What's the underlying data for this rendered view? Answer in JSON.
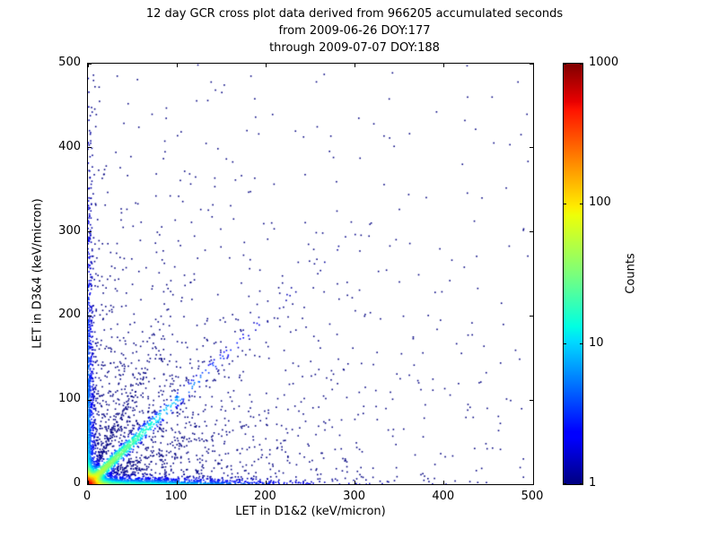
{
  "chart_data": {
    "type": "scatter",
    "title_lines": [
      "12 day GCR cross plot data derived from 966205 accumulated seconds",
      "from 2009-06-26 DOY:177",
      "through 2009-07-07 DOY:188"
    ],
    "xlabel": "LET in D1&2 (keV/micron)",
    "ylabel": "LET in D3&4 (keV/micron)",
    "xlim": [
      0,
      500
    ],
    "ylim": [
      0,
      500
    ],
    "x_ticks": [
      0,
      100,
      200,
      300,
      400,
      500
    ],
    "y_ticks": [
      0,
      100,
      200,
      300,
      400,
      500
    ],
    "grid": false,
    "legend": "none",
    "colorbar": {
      "label": "Counts",
      "scale": "log",
      "min": 1,
      "max": 1000,
      "tick_values": [
        1,
        10,
        100,
        1000
      ],
      "tick_labels": [
        "1",
        "10",
        "100",
        "1000"
      ],
      "colormap": "jet",
      "gradient_stops": [
        {
          "pos": 0.0,
          "color": "#000080"
        },
        {
          "pos": 0.11,
          "color": "#0000ff"
        },
        {
          "pos": 0.125,
          "color": "#0000ff"
        },
        {
          "pos": 0.34,
          "color": "#00dbff"
        },
        {
          "pos": 0.375,
          "color": "#00ffe2"
        },
        {
          "pos": 0.5,
          "color": "#7bff7b"
        },
        {
          "pos": 0.64,
          "color": "#eeff08"
        },
        {
          "pos": 0.66,
          "color": "#ffec00"
        },
        {
          "pos": 0.89,
          "color": "#ff1300"
        },
        {
          "pos": 0.91,
          "color": "#e80000"
        },
        {
          "pos": 1.0,
          "color": "#800000"
        }
      ]
    },
    "point_color_single_count": "#000080",
    "point_color_max_count": "#800000",
    "distribution": {
      "seed": 12345,
      "description": "Dense hot (red/orange, ~1000 counts) core at the origin; bright 1:1 diagonal correlation band fading from green/cyan to dark blue out to ~340 keV/micron; dense count band hugging the x-axis out to ~480; band hugging the y-axis up to ~500; minor rays fanning from the origin; sparse single-count dark-blue background points over the whole plane.",
      "components": [
        {
          "name": "sparse-background",
          "type": "biexp",
          "n": 900,
          "x_scale": 115,
          "y_scale": 115
        },
        {
          "name": "uniform-sprinkle",
          "type": "uniform",
          "n": 200
        },
        {
          "name": "mid-halo",
          "type": "biexp",
          "n": 500,
          "x_scale": 60,
          "y_scale": 60
        },
        {
          "name": "y-axis-band",
          "type": "biexp",
          "n": 750,
          "x_scale": 2.8,
          "y_scale": 130
        },
        {
          "name": "x-axis-band",
          "type": "biexp",
          "n": 1400,
          "x_scale": 65,
          "y_scale": 2.8
        },
        {
          "name": "ray-shallow",
          "type": "ray",
          "n": 220,
          "slope": 0.45,
          "d_scale": 30,
          "noise": 1.5,
          "noise_growth": 0.03
        },
        {
          "name": "ray-steep",
          "type": "ray",
          "n": 220,
          "slope": 2.2,
          "d_scale": 30,
          "noise": 1.5,
          "noise_growth": 0.03
        },
        {
          "name": "diagonal-band",
          "type": "diagonal",
          "n": 1300,
          "d_scale": 22,
          "d_scale_tail": 90,
          "tail_frac": 0.25,
          "noise": 1.2,
          "noise_growth": 0.04,
          "d_max": 340
        },
        {
          "name": "origin-core",
          "type": "biexp",
          "n": 2600,
          "x_scale": 4.5,
          "y_scale": 4.5
        }
      ],
      "density_model": {
        "core_amp": 900,
        "core_scale": 5,
        "diag_amp": 70,
        "diag_width": 4,
        "diag_decay": 45,
        "xband_amp": 50,
        "xband_ywidth": 2.5,
        "xband_decay": 70,
        "yband_amp": 14,
        "yband_xwidth": 2.5,
        "yband_decay": 130
      }
    }
  }
}
